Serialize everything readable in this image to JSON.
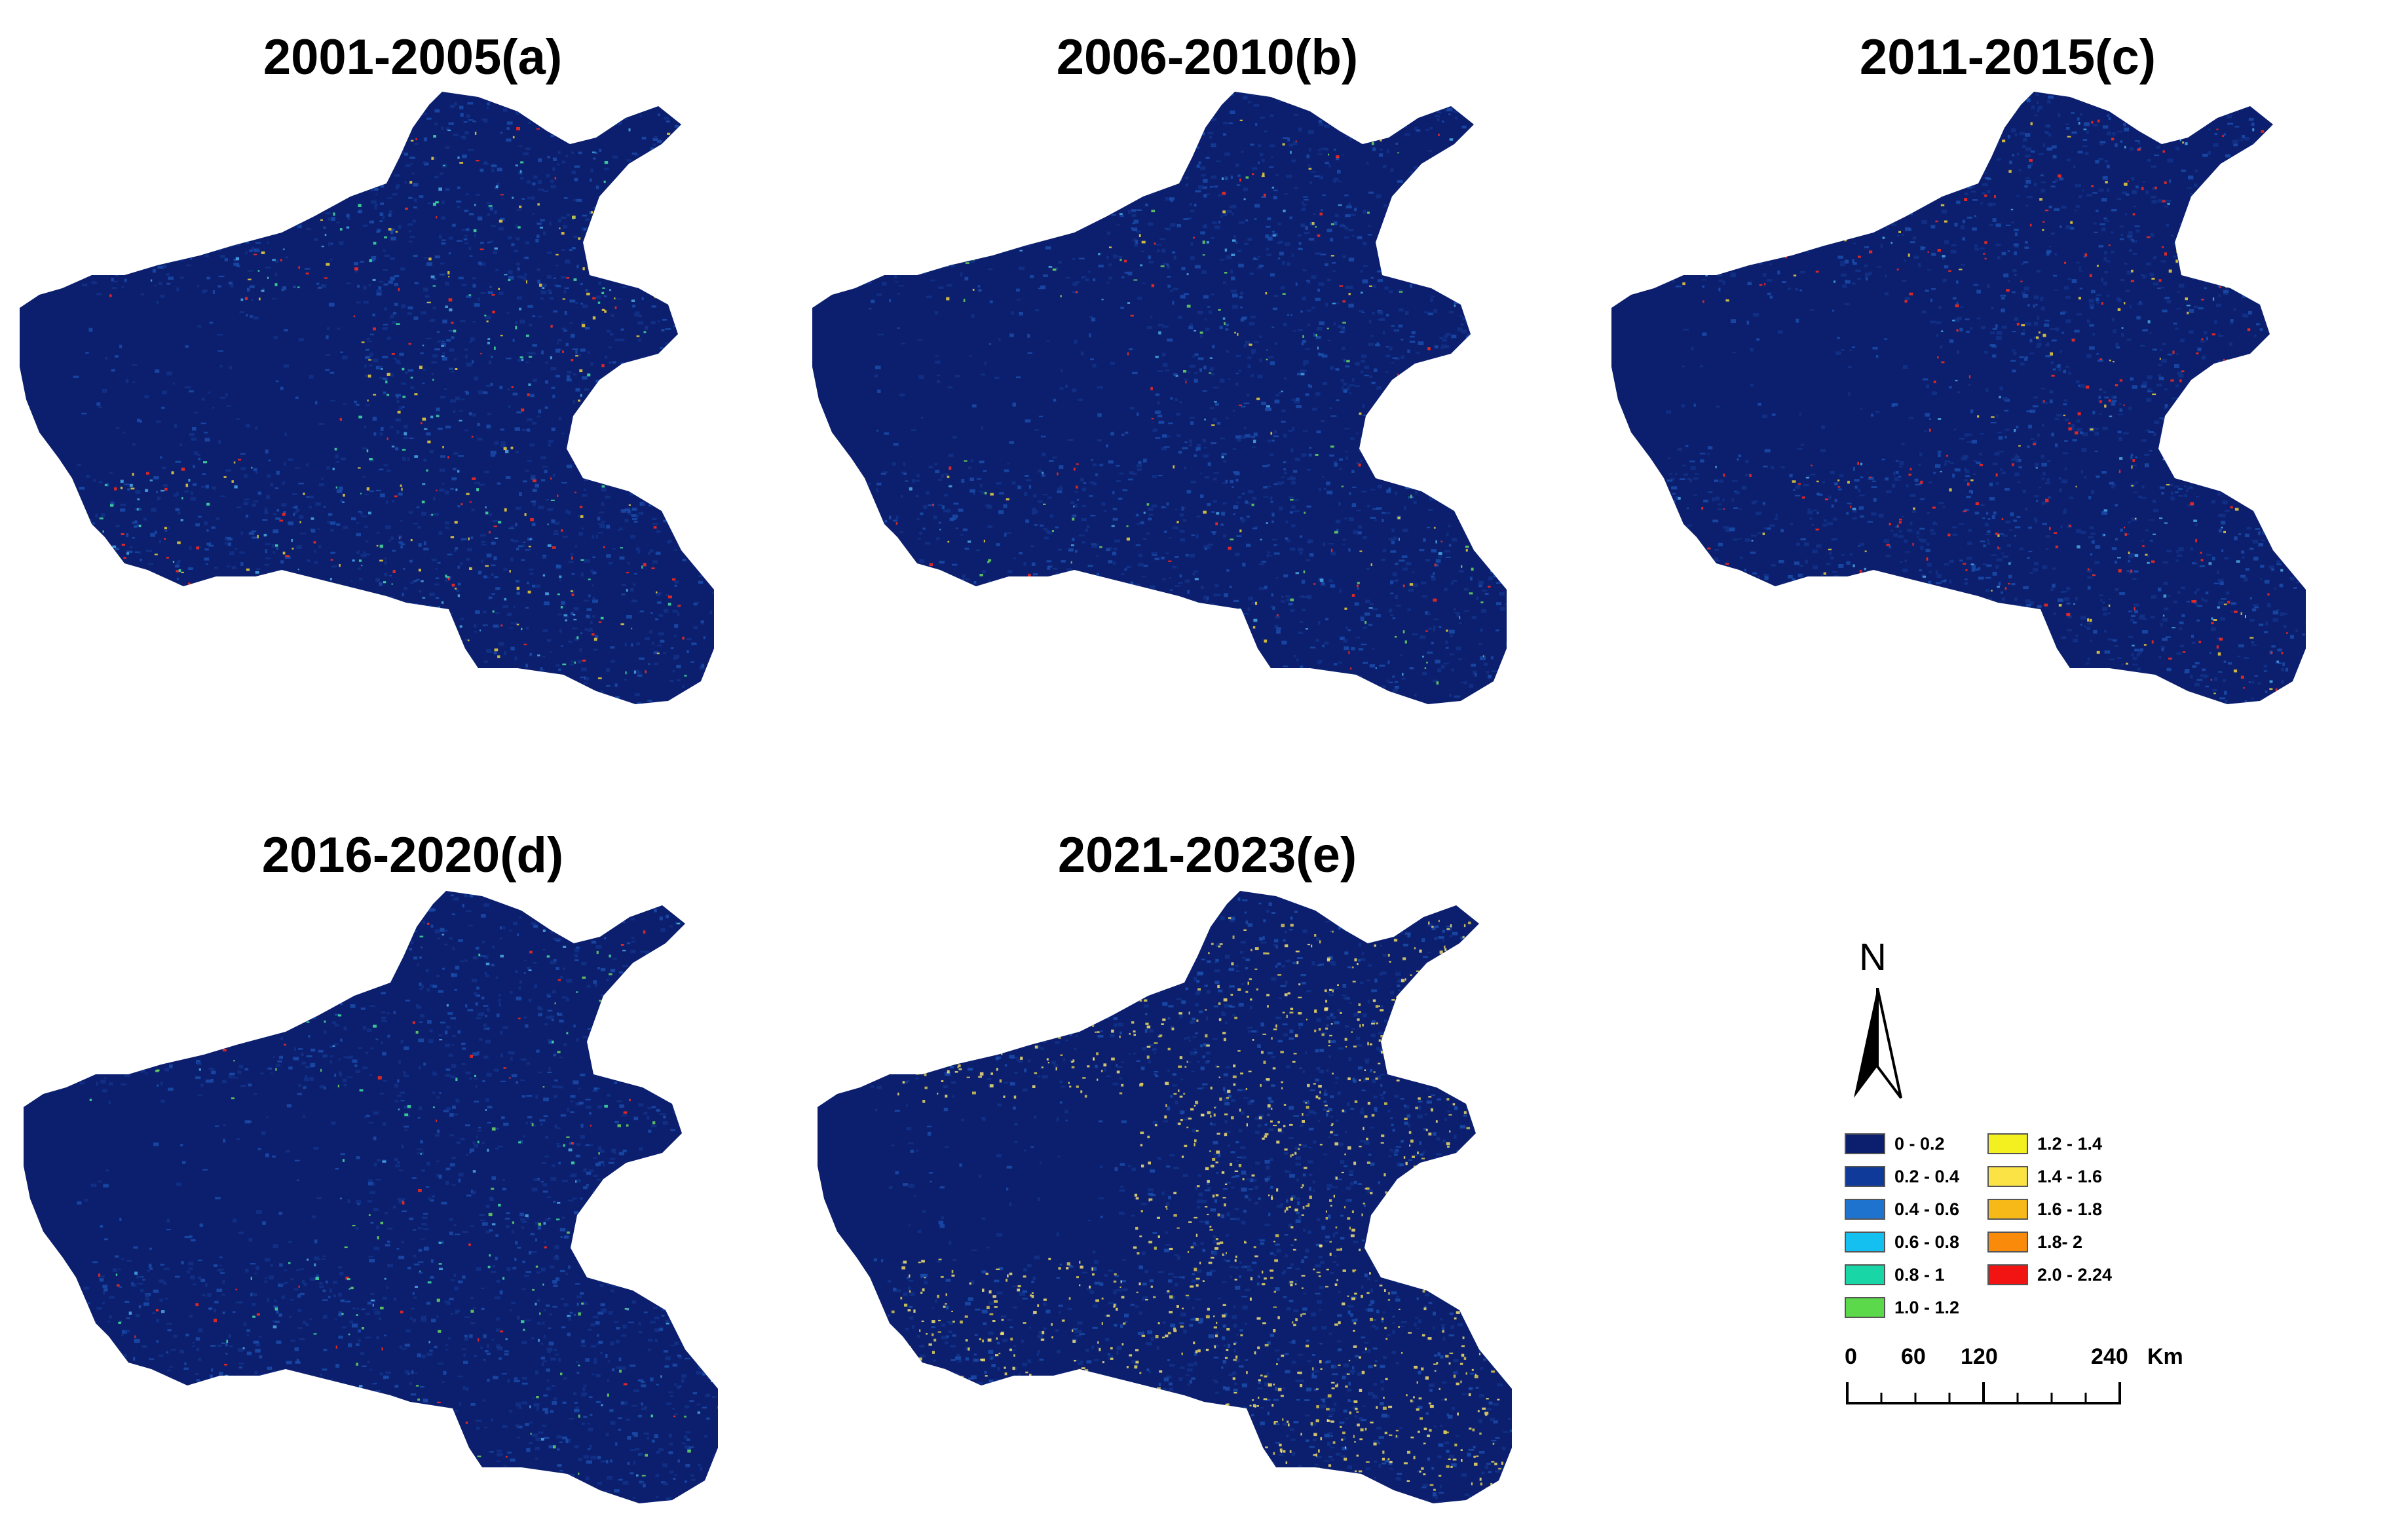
{
  "panels": [
    {
      "id": "a",
      "title": "2001-2005(a)",
      "hot_colors": [
        "#ff2a1a",
        "#43e0a0",
        "#f0d23a",
        "#4aa8e8"
      ],
      "hot_density": 0.07
    },
    {
      "id": "b",
      "title": "2006-2010(b)",
      "hot_colors": [
        "#ff2a1a",
        "#6ad860",
        "#f0d23a",
        "#4aa8e8"
      ],
      "hot_density": 0.04
    },
    {
      "id": "c",
      "title": "2011-2015(c)",
      "hot_colors": [
        "#ff2a1a",
        "#ff2a1a",
        "#f0d23a",
        "#4aa8e8"
      ],
      "hot_density": 0.06
    },
    {
      "id": "d",
      "title": "2016-2020(d)",
      "hot_colors": [
        "#ff2a1a",
        "#43e0a0",
        "#6ad860",
        "#4aa8e8"
      ],
      "hot_density": 0.035
    },
    {
      "id": "e",
      "title": "2021-2023(e)",
      "hot_colors": [
        "#f3e068",
        "#e8d860",
        "#f5e27a",
        "#d8c850"
      ],
      "hot_density": 0.16
    }
  ],
  "legend": {
    "north_label": "N",
    "classes": [
      {
        "label": "0 - 0.2",
        "color": "#0c1f6e"
      },
      {
        "label": "0.2 - 0.4",
        "color": "#0f3a9a"
      },
      {
        "label": "0.4 - 0.6",
        "color": "#1e73cf"
      },
      {
        "label": "0.6 - 0.8",
        "color": "#14c0f0"
      },
      {
        "label": "0.8 - 1",
        "color": "#19d6a6"
      },
      {
        "label": "1.0 - 1.2",
        "color": "#5bd94a"
      },
      {
        "label": "1.2 - 1.4",
        "color": "#f4ef1e"
      },
      {
        "label": "1.4 - 1.6",
        "color": "#fbe346"
      },
      {
        "label": "1.6 - 1.8",
        "color": "#f7b918"
      },
      {
        "label": "1.8- 2",
        "color": "#f98a0a"
      },
      {
        "label": "2.0 - 2.24",
        "color": "#f21313"
      }
    ],
    "scale_ticks": [
      "0",
      "60",
      "120",
      "240"
    ],
    "scale_unit": "Km"
  },
  "colors": {
    "base_fill": "#0c1f6e",
    "mid_fill": "#12338a"
  }
}
